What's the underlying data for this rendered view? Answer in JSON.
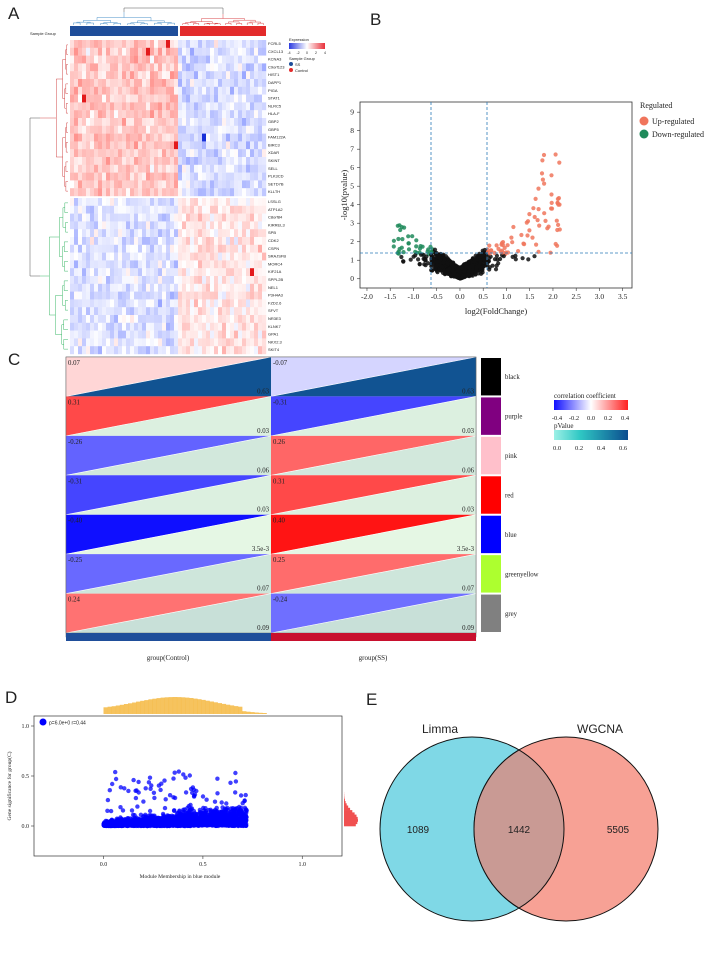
{
  "panels": {
    "a": "A",
    "b": "B",
    "c": "C",
    "d": "D",
    "e": "E"
  },
  "heatmap": {
    "annotation_label": "Sample Group",
    "legend_title": "Expression",
    "legend_ticks": [
      "-4",
      "-2",
      "0",
      "2",
      "4"
    ],
    "group_legend_title": "Sample Group",
    "group_legend": [
      {
        "label": "SS",
        "color": "#1f4e9a"
      },
      {
        "label": "Control",
        "color": "#e32b2b"
      }
    ],
    "genes_upper": [
      "FCRL5",
      "CXCL13",
      "KCNA3",
      "C9orf123",
      "HIST1",
      "DAPP1",
      "PIGA",
      "STAT1",
      "NLRC5",
      "HLA-F",
      "GBP2",
      "GBP5",
      "FAM122A",
      "BIRC3",
      "XDAR",
      "SKINT",
      "SELL",
      "PLK3CD",
      "SETD7B",
      "KLLTH"
    ],
    "genes_lower": [
      "LSSLG",
      "ATP1A2",
      "C8orf84",
      "KIRREL3",
      "SPB",
      "CDK2",
      "CSPN",
      "SRAJSFB",
      "MORC4",
      "KIF21A",
      "SPPL2B",
      "NEL1",
      "P3H4A3",
      "FZD2.6",
      "SFVT",
      "NR3E3",
      "KLNK7",
      "GPA1",
      "NKX2.3",
      "SKIT4"
    ]
  },
  "volcano": {
    "legend_title": "Regulated",
    "legend": [
      {
        "label": "Up-regulated",
        "color": "#f0755c"
      },
      {
        "label": "Down-regulated",
        "color": "#1f8a5a"
      }
    ],
    "xlabel": "log2(FoldChange)",
    "ylabel": "-log10(pvalue)",
    "xticks": [
      "-2.0",
      "-1.5",
      "-1.0",
      "-0.5",
      "0.0",
      "0.5",
      "1.0",
      "1.5",
      "2.0",
      "2.5",
      "3.0",
      "3.5"
    ],
    "yticks": [
      "0",
      "1",
      "2",
      "3",
      "4",
      "5",
      "6",
      "7",
      "8",
      "9"
    ]
  },
  "module_trait": {
    "columns": [
      "group(Control)",
      "group(SS)"
    ],
    "modules": [
      {
        "name": "black",
        "color": "#000000",
        "corr": [
          "0.07",
          "-0.07"
        ],
        "p": "0.63"
      },
      {
        "name": "purple",
        "color": "#800080",
        "corr": [
          "0.31",
          "-0.31"
        ],
        "p": "0.03"
      },
      {
        "name": "pink",
        "color": "#ffc0cb",
        "corr": [
          "-0.26",
          "0.26"
        ],
        "p": "0.06"
      },
      {
        "name": "red",
        "color": "#ff0000",
        "corr": [
          "-0.31",
          "0.31"
        ],
        "p": "0.03"
      },
      {
        "name": "blue",
        "color": "#0000ff",
        "corr": [
          "-0.40",
          "0.40"
        ],
        "p": "3.5e-3"
      },
      {
        "name": "greenyellow",
        "color": "#adff2f",
        "corr": [
          "-0.25",
          "0.25"
        ],
        "p": "0.07"
      },
      {
        "name": "grey",
        "color": "#808080",
        "corr": [
          "0.24",
          "-0.24"
        ],
        "p": "0.09"
      }
    ],
    "corr_legend_title": "correlation coefficient",
    "corr_ticks": [
      "-0.4",
      "-0.2",
      "0.0",
      "0.2",
      "0.4"
    ],
    "p_legend_title": "pValue",
    "p_ticks": [
      "0.0",
      "0.2",
      "0.4",
      "0.6"
    ],
    "column_colors": [
      "#1f4e9a",
      "#c8102e"
    ]
  },
  "chart_data": [
    {
      "type": "scatter",
      "title": "",
      "annotation": "p=6.0e+0 r=0.44",
      "xlabel": "Module Membership in blue module",
      "ylabel": "Gene significance for group(C)",
      "xticks": [
        "0.0",
        "0.5",
        "1.0"
      ],
      "yticks": [
        "0.0",
        "0.5",
        "1.0"
      ],
      "xlim": [
        -0.35,
        1.2
      ],
      "ylim": [
        -0.3,
        1.1
      ],
      "cloud": {
        "x_range": [
          0.0,
          0.7
        ],
        "y_range": [
          0.0,
          0.55
        ]
      },
      "point_color": "#0000ff"
    },
    {
      "type": "venn",
      "sets": [
        {
          "name": "Limma",
          "only": 1089,
          "color": "#7fd8e6"
        },
        {
          "name": "WGCNA",
          "only": 5505,
          "color": "#f7a195"
        }
      ],
      "intersection": 1442
    }
  ]
}
